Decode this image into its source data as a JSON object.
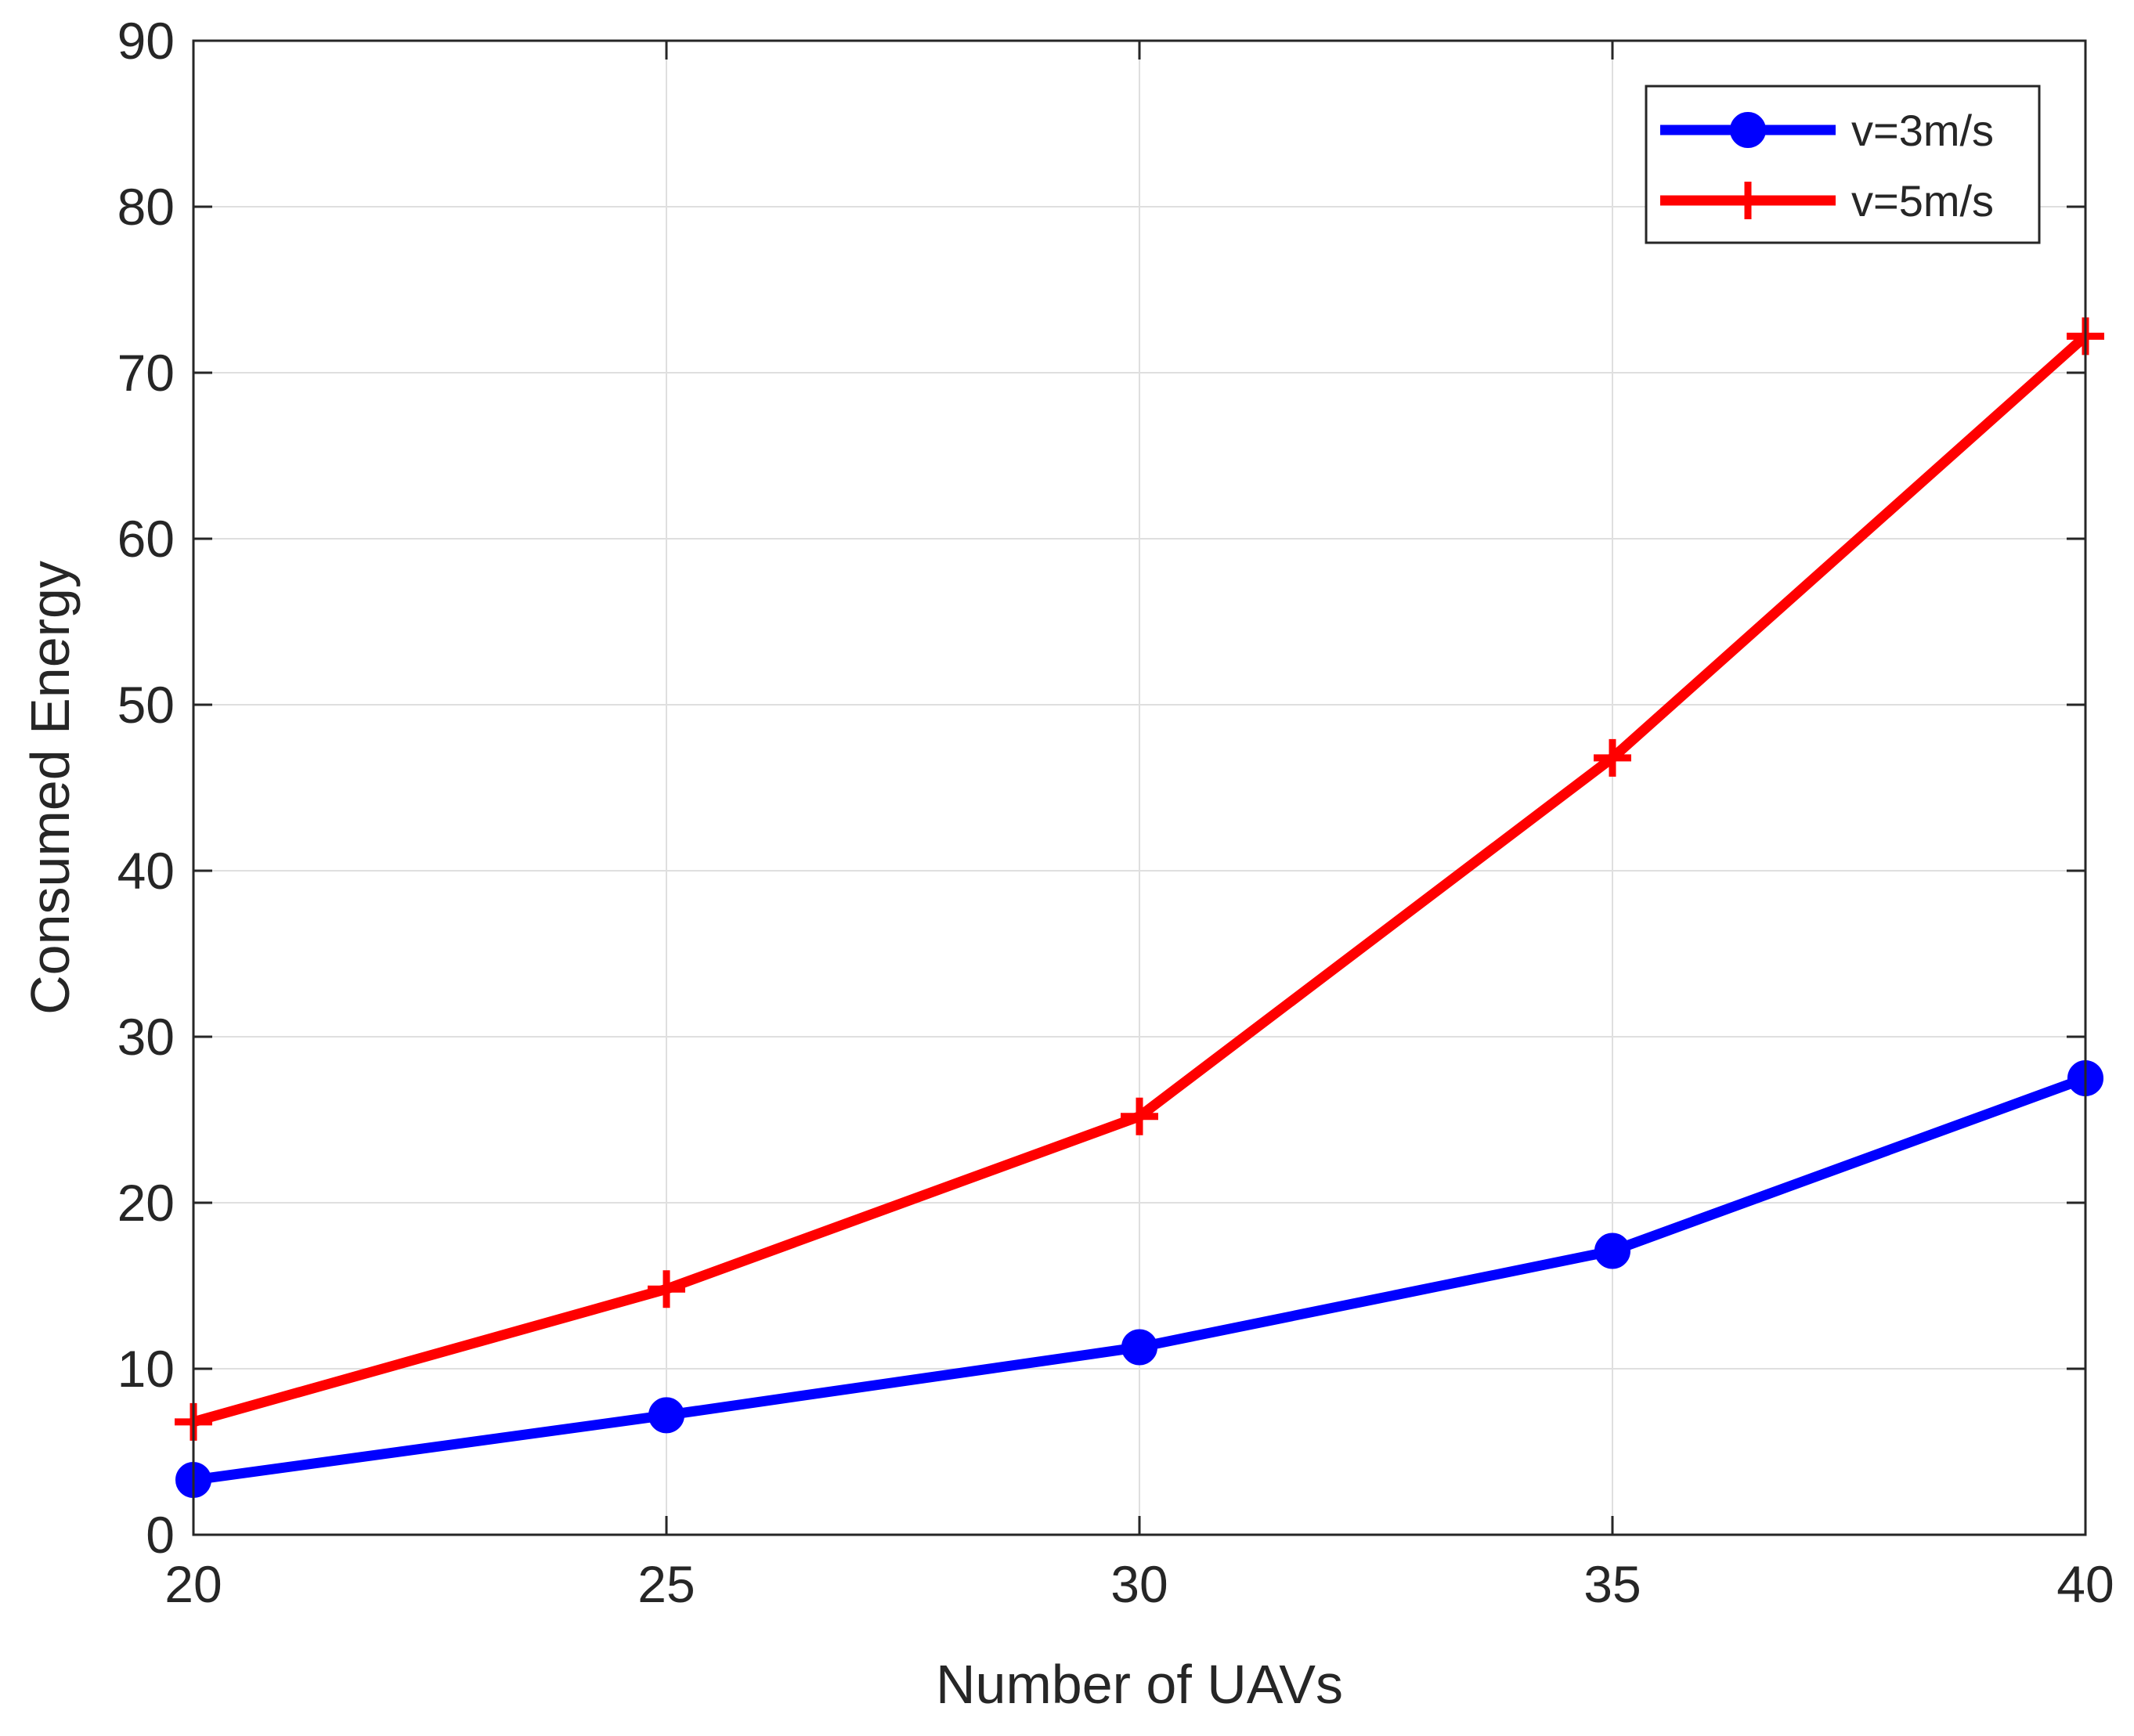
{
  "chart_data": {
    "type": "line",
    "title": "",
    "xlabel": "Number of UAVs",
    "ylabel": "Consumed Energy",
    "x": [
      20,
      25,
      30,
      35,
      40
    ],
    "xticks": [
      "20",
      "25",
      "30",
      "35",
      "40"
    ],
    "yticks": [
      "0",
      "10",
      "20",
      "30",
      "40",
      "50",
      "60",
      "70",
      "80",
      "90"
    ],
    "xlim": [
      20,
      40
    ],
    "ylim": [
      0,
      90
    ],
    "grid": true,
    "legend_position": "top-right",
    "series": [
      {
        "name": "v=3m/s",
        "values": [
          3.3,
          7.2,
          11.3,
          17.1,
          27.5
        ],
        "color": "#0000ff",
        "marker": "circle"
      },
      {
        "name": "v=5m/s",
        "values": [
          6.8,
          14.8,
          25.2,
          46.8,
          72.2
        ],
        "color": "#ff0000",
        "marker": "plus"
      }
    ]
  }
}
